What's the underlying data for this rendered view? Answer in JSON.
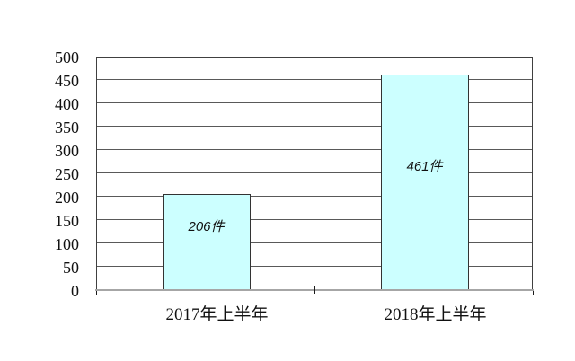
{
  "chart_data": {
    "type": "bar",
    "title": "",
    "categories": [
      "2017年上半年",
      "2018年上半年"
    ],
    "values": [
      206,
      461
    ],
    "bar_labels": [
      "206件",
      "461件"
    ],
    "unit": "件",
    "ylim": [
      0,
      500
    ],
    "yticks": [
      0,
      50,
      100,
      150,
      200,
      250,
      300,
      350,
      400,
      450,
      500
    ],
    "grid": true,
    "legend": "none",
    "colors": {
      "bar_fill": "#ccffff",
      "bar_border": "#333333",
      "gridline": "#595959",
      "baseline": "#a6a6a6",
      "frame": "#404040",
      "text": "#111111"
    }
  }
}
